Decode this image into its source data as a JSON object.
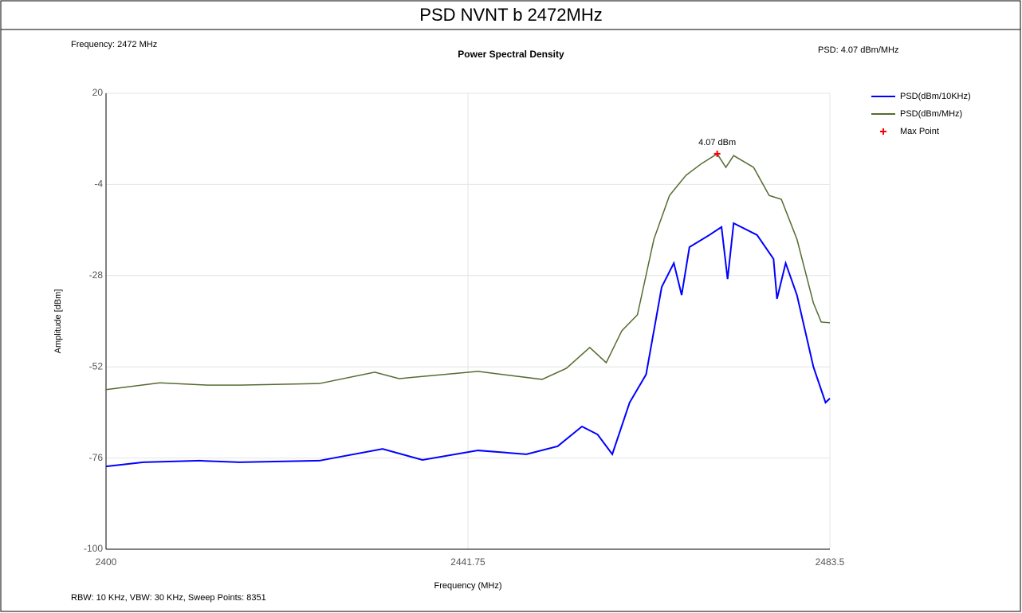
{
  "chart_data": {
    "type": "line",
    "title": "PSD NVNT b 2472MHz",
    "subtitle": "Power Spectral Density",
    "annotations": [
      "Frequency: 2472 MHz",
      "PSD: 4.07 dBm/MHz",
      "RBW: 10 KHz,  VBW: 30 KHz,  Sweep Points: 8351"
    ],
    "xlabel": "Frequency (MHz)",
    "ylabel": "Amplitude [dBm]",
    "xlim": [
      2400,
      2483.5
    ],
    "xticks": [
      2400,
      2441.75,
      2483.5
    ],
    "ylim": [
      -100,
      20
    ],
    "yticks": [
      -100,
      -76,
      -52,
      -28,
      -4,
      20
    ],
    "grid": true,
    "legend": "upper right",
    "series": [
      {
        "name": "PSD(dBm/10KHz)",
        "color": "#0000ff",
        "x": [
          2400,
          2404.3,
          2410.8,
          2415.4,
          2424.6,
          2431.9,
          2436.5,
          2442.9,
          2448.5,
          2452.1,
          2454.9,
          2456.7,
          2458.4,
          2460.4,
          2462.3,
          2464.1,
          2465.5,
          2466.4,
          2467.3,
          2469.6,
          2471.0,
          2471.7,
          2472.4,
          2475.1,
          2477.0,
          2477.4,
          2478.4,
          2479.7,
          2481.6,
          2483.0,
          2483.5
        ],
        "values": [
          -78.2,
          -77.1,
          -76.7,
          -77.1,
          -76.7,
          -73.6,
          -76.5,
          -74.0,
          -75.0,
          -72.9,
          -67.7,
          -69.8,
          -75.0,
          -61.4,
          -54.0,
          -31.0,
          -24.7,
          -33.1,
          -20.5,
          -17.3,
          -15.2,
          -28.9,
          -14.2,
          -17.3,
          -23.6,
          -34.1,
          -24.7,
          -33.1,
          -52.0,
          -61.4,
          -60.3
        ]
      },
      {
        "name": "PSD(dBm/MHz)",
        "color": "#556b2f",
        "x": [
          2400,
          2406.2,
          2411.7,
          2415.4,
          2424.6,
          2431.0,
          2433.8,
          2442.9,
          2450.3,
          2453.1,
          2455.8,
          2457.7,
          2459.5,
          2461.3,
          2463.2,
          2465.0,
          2466.9,
          2468.7,
          2470.5,
          2471.5,
          2472.4,
          2474.7,
          2476.5,
          2477.9,
          2479.7,
          2481.6,
          2482.5,
          2483.5
        ],
        "values": [
          -58.0,
          -56.2,
          -56.8,
          -56.8,
          -56.4,
          -53.4,
          -55.1,
          -53.2,
          -55.3,
          -52.4,
          -46.9,
          -50.9,
          -42.5,
          -38.3,
          -18.4,
          -6.9,
          -1.6,
          1.5,
          4.07,
          0.5,
          3.6,
          0.5,
          -6.9,
          -7.9,
          -18.4,
          -35.2,
          -40.2,
          -40.4
        ]
      },
      {
        "name": "Max Point",
        "color": "#ff0000",
        "marker": true,
        "x": [
          2470.5
        ],
        "values": [
          4.07
        ],
        "value_labels": [
          "4.07 dBm"
        ]
      }
    ]
  }
}
